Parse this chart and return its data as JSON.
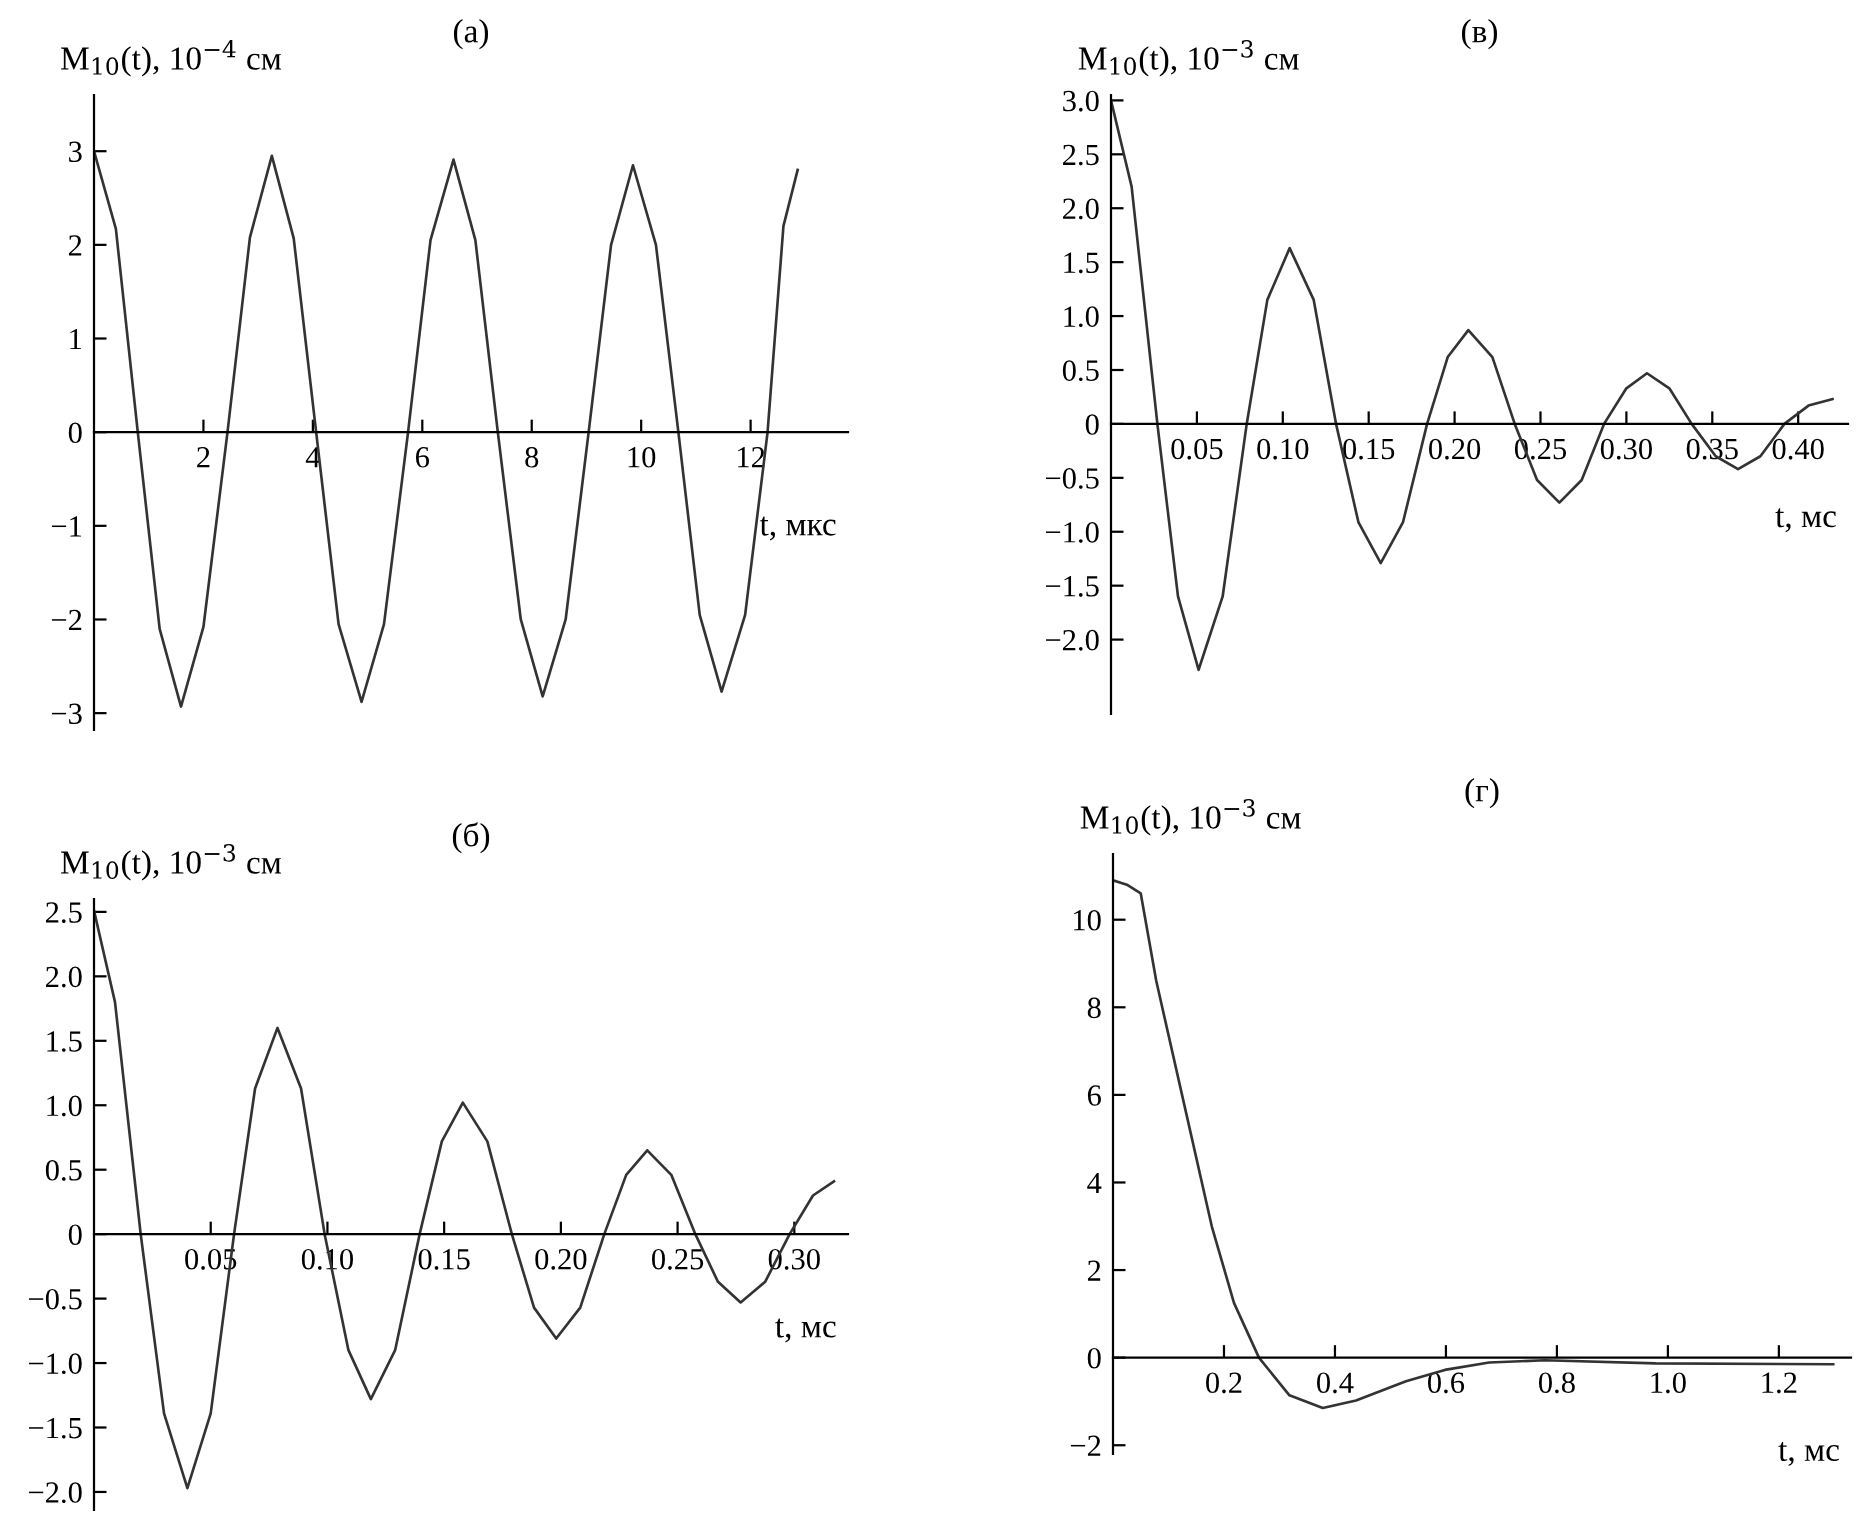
{
  "chart_data": [
    {
      "type": "line",
      "title": "(а)",
      "xlabel": "t, мкс",
      "ylabel": "M$_{10}$(t), 10$^{−4}$ см",
      "xlim": [
        0,
        13.78
      ],
      "ylim": [
        -3.18,
        3.6
      ],
      "xticks": [
        2,
        4,
        6,
        8,
        10,
        12
      ],
      "yticks": [
        {
          "value": -3,
          "label": "−3"
        },
        {
          "value": -2,
          "label": "−2"
        },
        {
          "value": -1,
          "label": "−1"
        },
        0,
        1,
        2,
        3
      ],
      "x": [
        0,
        0.4,
        0.8,
        1.2,
        1.59,
        2.0,
        2.44,
        2.85,
        3.25,
        3.65,
        4.06,
        4.47,
        4.89,
        5.3,
        5.74,
        6.15,
        6.57,
        6.97,
        7.38,
        7.8,
        8.2,
        8.62,
        9.04,
        9.45,
        9.85,
        10.27,
        10.68,
        11.07,
        11.47,
        11.9,
        12.31,
        12.6,
        12.86
      ],
      "series": [
        {
          "color": "#333333",
          "values": [
            3.0,
            2.17,
            0,
            -2.1,
            -2.93,
            -2.08,
            0,
            2.08,
            2.95,
            2.07,
            0,
            -2.05,
            -2.88,
            -2.05,
            0,
            2.05,
            2.91,
            2.05,
            0,
            -2.0,
            -2.82,
            -2.0,
            0,
            2.0,
            2.85,
            2.0,
            0,
            -1.95,
            -2.77,
            -1.95,
            0,
            2.2,
            2.8
          ]
        }
      ]
    },
    {
      "type": "line",
      "title": "(в)",
      "xlabel": "t, мс",
      "ylabel": "M$_{10}$(t), 10$^{−3}$ см",
      "xlim": [
        0,
        0.429
      ],
      "ylim": [
        -2.69,
        3.05
      ],
      "xticks": [
        0.05,
        {
          "value": 0.1,
          "label": "0.10"
        },
        0.15,
        {
          "value": 0.2,
          "label": "0.20"
        },
        0.25,
        {
          "value": 0.3,
          "label": "0.30"
        },
        0.35,
        {
          "value": 0.4,
          "label": "0.40"
        }
      ],
      "yticks": [
        {
          "value": -2.0,
          "label": "−2.0"
        },
        {
          "value": -1.5,
          "label": "−1.5"
        },
        {
          "value": -1.0,
          "label": "−1.0"
        },
        {
          "value": -0.5,
          "label": "−0.5"
        },
        0,
        0.5,
        {
          "value": 1.0,
          "label": "1.0"
        },
        1.5,
        {
          "value": 2.0,
          "label": "2.0"
        },
        2.5,
        {
          "value": 3.0,
          "label": "3.0"
        }
      ],
      "x": [
        0,
        0.012,
        0.027,
        0.039,
        0.051,
        0.065,
        0.079,
        0.091,
        0.104,
        0.118,
        0.131,
        0.144,
        0.157,
        0.17,
        0.184,
        0.196,
        0.208,
        0.222,
        0.235,
        0.248,
        0.261,
        0.274,
        0.287,
        0.3,
        0.312,
        0.325,
        0.338,
        0.352,
        0.365,
        0.378,
        0.392,
        0.406,
        0.42
      ],
      "series": [
        {
          "color": "#333333",
          "values": [
            3.0,
            2.2,
            0,
            -1.6,
            -2.28,
            -1.6,
            0,
            1.15,
            1.63,
            1.15,
            0,
            -0.91,
            -1.29,
            -0.91,
            0,
            0.62,
            0.87,
            0.62,
            0,
            -0.52,
            -0.73,
            -0.52,
            0,
            0.33,
            0.47,
            0.33,
            0,
            -0.3,
            -0.42,
            -0.3,
            0,
            0.17,
            0.23
          ]
        }
      ]
    },
    {
      "type": "line",
      "title": "(б)",
      "xlabel": "t, мс",
      "ylabel": "M$_{10}$(t), 10$^{−3}$ см",
      "xlim": [
        0,
        0.323
      ],
      "ylim": [
        -2.14,
        2.6
      ],
      "xticks": [
        0.05,
        {
          "value": 0.1,
          "label": "0.10"
        },
        0.15,
        {
          "value": 0.2,
          "label": "0.20"
        },
        0.25,
        {
          "value": 0.3,
          "label": "0.30"
        }
      ],
      "yticks": [
        {
          "value": -2.0,
          "label": "−2.0"
        },
        {
          "value": -1.5,
          "label": "−1.5"
        },
        {
          "value": -1.0,
          "label": "−1.0"
        },
        {
          "value": -0.5,
          "label": "−0.5"
        },
        0,
        0.5,
        {
          "value": 1.0,
          "label": "1.0"
        },
        1.5,
        {
          "value": 2.0,
          "label": "2.0"
        },
        2.5
      ],
      "x": [
        0,
        0.009,
        0.02,
        0.03,
        0.04,
        0.05,
        0.06,
        0.069,
        0.0786,
        0.0887,
        0.0988,
        0.109,
        0.1186,
        0.129,
        0.1395,
        0.149,
        0.158,
        0.1685,
        0.179,
        0.1885,
        0.198,
        0.2083,
        0.2186,
        0.228,
        0.237,
        0.2473,
        0.2576,
        0.2673,
        0.277,
        0.2875,
        0.298,
        0.308,
        0.317
      ],
      "series": [
        {
          "color": "#333333",
          "values": [
            2.51,
            1.8,
            0,
            -1.39,
            -1.97,
            -1.39,
            0,
            1.13,
            1.6,
            1.13,
            0,
            -0.9,
            -1.28,
            -0.9,
            0,
            0.72,
            1.02,
            0.72,
            0,
            -0.57,
            -0.81,
            -0.57,
            0,
            0.46,
            0.65,
            0.46,
            0,
            -0.37,
            -0.53,
            -0.37,
            0,
            0.3,
            0.41
          ]
        }
      ]
    },
    {
      "type": "line",
      "title": "(г)",
      "xlabel": "t, мс",
      "ylabel": "M$_{10}$(t), 10$^{−3}$ см",
      "xlim": [
        0,
        1.33
      ],
      "ylim": [
        -2.2,
        11.5
      ],
      "xticks": [
        0.2,
        0.4,
        0.6,
        0.8,
        {
          "value": 1.0,
          "label": "1.0"
        },
        1.2
      ],
      "yticks": [
        {
          "value": -2,
          "label": "−2"
        },
        0,
        2,
        4,
        6,
        8,
        10
      ],
      "x": [
        0,
        0.025,
        0.05,
        0.078,
        0.128,
        0.178,
        0.218,
        0.263,
        0.318,
        0.378,
        0.438,
        0.528,
        0.598,
        0.678,
        0.778,
        0.978,
        1.298
      ],
      "series": [
        {
          "color": "#333333",
          "values": [
            10.9,
            10.8,
            10.6,
            8.6,
            5.8,
            3.0,
            1.25,
            0,
            -0.86,
            -1.15,
            -0.98,
            -0.54,
            -0.28,
            -0.11,
            -0.06,
            -0.13,
            -0.15
          ]
        }
      ]
    }
  ]
}
